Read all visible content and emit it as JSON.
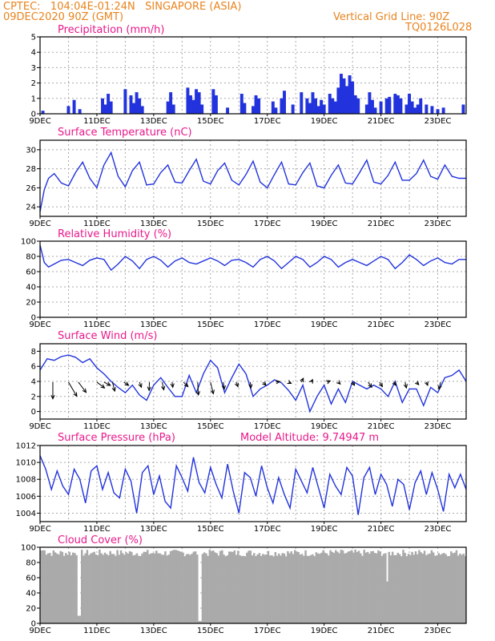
{
  "header": {
    "left1": "CPTEC:   104:04E-01:24N   SINGAPORE (ASIA)",
    "left2": "09DEC2020 90Z (GMT)",
    "right1": "Vertical Grid Line: 90Z",
    "right2": "TQ0126L028"
  },
  "x_ticks": [
    "9DEC",
    "11DEC",
    "13DEC",
    "15DEC",
    "17DEC",
    "19DEC",
    "21DEC",
    "23DEC"
  ],
  "colors": {
    "line": "#2233dd",
    "bar_precip": "#2233dd",
    "bar_cloud": "#aaaaaa",
    "title": "#e8198b",
    "header": "#e8841e"
  },
  "chart_data": [
    {
      "type": "bar",
      "title": "Precipitation (mm/h)",
      "ylim": [
        0,
        5
      ],
      "yticks": [
        0,
        1,
        2,
        3,
        4,
        5
      ],
      "xlim": [
        0,
        15
      ],
      "x": [
        0.1,
        1.0,
        1.2,
        1.4,
        2.2,
        2.3,
        2.4,
        2.5,
        3.0,
        3.2,
        3.3,
        3.4,
        3.5,
        3.6,
        4.5,
        4.6,
        4.7,
        5.2,
        5.3,
        5.4,
        5.5,
        5.6,
        5.7,
        6.1,
        6.2,
        6.6,
        7.1,
        7.2,
        7.5,
        7.6,
        7.7,
        8.2,
        8.3,
        8.5,
        8.6,
        8.9,
        9.2,
        9.4,
        9.5,
        9.6,
        9.7,
        9.8,
        9.9,
        10.0,
        10.5,
        10.6,
        10.7,
        10.8,
        11.5,
        11.6,
        11.7,
        11.8,
        12.0,
        12.3,
        12.5,
        12.6,
        12.7,
        12.9,
        13.0,
        13.2,
        13.3,
        13.4,
        13.8,
        14.0,
        14.2,
        14.9
      ],
      "values": [
        0.2,
        0.5,
        0.9,
        0.3,
        1.0,
        0.6,
        1.3,
        0.8,
        1.6,
        1.2,
        0.7,
        1.4,
        1.0,
        0.5,
        0.8,
        1.4,
        0.6,
        1.7,
        1.2,
        0.9,
        1.6,
        1.4,
        0.6,
        1.6,
        1.2,
        0.4,
        1.3,
        0.7,
        0.5,
        1.2,
        1.0,
        0.8,
        0.4,
        1.0,
        1.5,
        0.6,
        1.4,
        1.0,
        0.7,
        1.4,
        1.0,
        0.5,
        0.9,
        0.6,
        1.7,
        0.3,
        0.5,
        1.0,
        0.6,
        1.4,
        0.9,
        0.4,
        0.8,
        1.1,
        0.9,
        0.8,
        1.0,
        0.6,
        0.9,
        0.4,
        0.6,
        1.0,
        0.5,
        0.3,
        0.4,
        0.6
      ],
      "extra_bars": [
        [
          10.2,
          1.3
        ],
        [
          10.3,
          1.0
        ],
        [
          10.4,
          0.8
        ],
        [
          10.6,
          2.6
        ],
        [
          10.7,
          2.3
        ],
        [
          10.8,
          1.8
        ],
        [
          10.9,
          2.5
        ],
        [
          11.0,
          2.1
        ],
        [
          11.1,
          1.2
        ],
        [
          11.2,
          1.0
        ],
        [
          12.2,
          1.0
        ],
        [
          12.3,
          0.9
        ],
        [
          12.5,
          1.3
        ],
        [
          12.6,
          1.2
        ],
        [
          13.0,
          1.3
        ],
        [
          13.1,
          0.8
        ],
        [
          13.6,
          0.6
        ]
      ]
    },
    {
      "type": "line",
      "title": "Surface Temperature (nC)",
      "ylim": [
        23,
        31
      ],
      "yticks": [
        24,
        26,
        28,
        30
      ],
      "xlim": [
        0,
        15
      ],
      "x": [
        0,
        0.15,
        0.3,
        0.5,
        0.75,
        1.0,
        1.25,
        1.5,
        1.75,
        2.0,
        2.25,
        2.5,
        2.75,
        3.0,
        3.25,
        3.5,
        3.75,
        4.0,
        4.25,
        4.5,
        4.75,
        5.0,
        5.25,
        5.5,
        5.75,
        6.0,
        6.25,
        6.5,
        6.75,
        7.0,
        7.25,
        7.5,
        7.75,
        8.0,
        8.25,
        8.5,
        8.75,
        9.0,
        9.25,
        9.5,
        9.75,
        10.0,
        10.25,
        10.5,
        10.75,
        11.0,
        11.25,
        11.5,
        11.75,
        12.0,
        12.25,
        12.5,
        12.75,
        13.0,
        13.25,
        13.5,
        13.75,
        14.0,
        14.25,
        14.5,
        14.75,
        15.0
      ],
      "values": [
        23.5,
        25.8,
        27.0,
        27.5,
        26.5,
        26.2,
        27.6,
        28.7,
        27.0,
        26.0,
        28.4,
        29.7,
        27.2,
        26.1,
        27.8,
        28.7,
        26.3,
        26.4,
        27.6,
        28.4,
        26.6,
        26.5,
        27.8,
        29.0,
        26.7,
        26.4,
        27.8,
        28.6,
        26.8,
        26.3,
        27.4,
        28.8,
        26.6,
        26.0,
        27.4,
        28.7,
        26.4,
        26.3,
        27.6,
        28.6,
        26.2,
        26.0,
        27.3,
        28.4,
        26.5,
        26.4,
        27.6,
        28.9,
        26.6,
        26.4,
        27.3,
        28.7,
        26.8,
        26.8,
        27.5,
        28.9,
        27.2,
        26.9,
        28.4,
        27.2,
        27.0,
        27.0
      ]
    },
    {
      "type": "line",
      "title": "Relative Humidity (%)",
      "ylim": [
        0,
        100
      ],
      "yticks": [
        0,
        20,
        40,
        60,
        80,
        100
      ],
      "xlim": [
        0,
        15
      ],
      "x": [
        0,
        0.15,
        0.3,
        0.5,
        0.75,
        1.0,
        1.25,
        1.5,
        1.75,
        2.0,
        2.25,
        2.5,
        2.75,
        3.0,
        3.25,
        3.5,
        3.75,
        4.0,
        4.25,
        4.5,
        4.75,
        5.0,
        5.25,
        5.5,
        5.75,
        6.0,
        6.25,
        6.5,
        6.75,
        7.0,
        7.25,
        7.5,
        7.75,
        8.0,
        8.25,
        8.5,
        8.75,
        9.0,
        9.25,
        9.5,
        9.75,
        10.0,
        10.25,
        10.5,
        10.75,
        11.0,
        11.25,
        11.5,
        11.75,
        12.0,
        12.25,
        12.5,
        12.75,
        13.0,
        13.25,
        13.5,
        13.75,
        14.0,
        14.25,
        14.5,
        14.75,
        15.0
      ],
      "values": [
        95,
        72,
        66,
        70,
        75,
        76,
        72,
        68,
        75,
        78,
        76,
        62,
        70,
        80,
        74,
        64,
        76,
        80,
        75,
        66,
        74,
        78,
        72,
        70,
        74,
        78,
        74,
        68,
        75,
        76,
        72,
        66,
        76,
        80,
        74,
        64,
        72,
        80,
        76,
        66,
        72,
        80,
        76,
        66,
        72,
        76,
        72,
        68,
        74,
        80,
        76,
        64,
        72,
        82,
        76,
        68,
        74,
        78,
        72,
        70,
        76,
        76
      ]
    },
    {
      "type": "line",
      "title": "Surface Wind (m/s)",
      "ylim": [
        -1,
        9
      ],
      "yticks": [
        0,
        2,
        4,
        6,
        8
      ],
      "xlim": [
        0,
        15
      ],
      "x": [
        0,
        0.25,
        0.5,
        0.75,
        1.0,
        1.25,
        1.5,
        1.75,
        2.0,
        2.25,
        2.5,
        2.75,
        3.0,
        3.25,
        3.5,
        3.75,
        4.0,
        4.25,
        4.5,
        4.75,
        5.0,
        5.25,
        5.5,
        5.75,
        6.0,
        6.25,
        6.5,
        6.75,
        7.0,
        7.25,
        7.5,
        7.75,
        8.0,
        8.25,
        8.5,
        8.75,
        9.0,
        9.25,
        9.5,
        9.75,
        10.0,
        10.25,
        10.5,
        10.75,
        11.0,
        11.25,
        11.5,
        11.75,
        12.0,
        12.25,
        12.5,
        12.75,
        13.0,
        13.25,
        13.5,
        13.75,
        14.0,
        14.25,
        14.5,
        14.75,
        15.0
      ],
      "values": [
        5.5,
        7.0,
        6.8,
        7.3,
        7.5,
        7.2,
        6.5,
        7.0,
        5.8,
        5.0,
        4.0,
        3.2,
        2.5,
        3.5,
        2.2,
        1.5,
        3.5,
        4.5,
        3.2,
        2.0,
        2.0,
        4.8,
        2.5,
        5.0,
        6.8,
        5.8,
        2.5,
        4.5,
        6.3,
        5.0,
        2.0,
        3.0,
        3.5,
        4.2,
        3.8,
        2.8,
        1.5,
        3.5,
        0.0,
        2.0,
        3.5,
        1.0,
        3.0,
        1.2,
        4.0,
        3.5,
        3.0,
        3.5,
        3.0,
        2.0,
        4.0,
        1.2,
        3.0,
        3.0,
        0.8,
        3.2,
        2.5,
        4.5,
        4.8,
        5.5,
        4.0
      ],
      "arrows": [
        [
          0.45,
          3.9,
          0,
          2.6
        ],
        [
          1.0,
          3.9,
          1.3,
          2.2
        ],
        [
          1.35,
          3.9,
          1.2,
          1.6
        ],
        [
          2.0,
          3.9,
          1.2,
          0.9
        ],
        [
          2.25,
          3.9,
          1.0,
          0.5
        ],
        [
          2.55,
          3.9,
          0.35,
          1.4
        ],
        [
          2.95,
          3.9,
          0.75,
          0.5
        ],
        [
          3.5,
          3.9,
          0.3,
          0.8
        ],
        [
          3.85,
          3.9,
          -0.05,
          1.3
        ],
        [
          4.3,
          3.9,
          0.25,
          1.2
        ],
        [
          4.65,
          3.9,
          0.1,
          0.8
        ],
        [
          5.05,
          3.9,
          0.7,
          0.7
        ],
        [
          5.55,
          3.9,
          0.1,
          2.0
        ],
        [
          6.0,
          3.9,
          0.45,
          1.8
        ],
        [
          6.45,
          3.9,
          0.15,
          1.1
        ],
        [
          6.9,
          3.9,
          0.3,
          0.7
        ],
        [
          7.4,
          3.9,
          0.1,
          0.9
        ],
        [
          7.85,
          3.9,
          0.45,
          0.5
        ],
        [
          8.3,
          3.9,
          0.6,
          -0.1
        ],
        [
          8.75,
          3.9,
          0.4,
          0.2
        ],
        [
          9.2,
          3.9,
          0.3,
          -0.6
        ],
        [
          9.55,
          3.9,
          0.2,
          -0.4
        ],
        [
          10.1,
          3.9,
          0.5,
          -0.2
        ],
        [
          10.5,
          3.9,
          0.3,
          0.3
        ],
        [
          11.0,
          3.9,
          0.3,
          0.5
        ],
        [
          11.55,
          3.9,
          0.55,
          0.8
        ],
        [
          11.95,
          3.9,
          0.45,
          0.7
        ],
        [
          12.45,
          3.9,
          0.35,
          0.5
        ],
        [
          12.85,
          3.9,
          0.2,
          0.9
        ],
        [
          13.25,
          3.9,
          0.35,
          0.4
        ],
        [
          13.6,
          3.9,
          0.2,
          0.5
        ],
        [
          14.1,
          3.9,
          -0.25,
          1.1
        ]
      ]
    },
    {
      "type": "line",
      "title": "Surface Pressure (hPa)",
      "subtitle": "Model Altitude: 9.74947  m",
      "ylim": [
        1003,
        1012
      ],
      "yticks": [
        1004,
        1006,
        1008,
        1010,
        1012
      ],
      "xlim": [
        0,
        15
      ],
      "x": [
        0,
        0.2,
        0.4,
        0.6,
        0.8,
        1.0,
        1.2,
        1.4,
        1.6,
        1.8,
        2.0,
        2.2,
        2.4,
        2.6,
        2.8,
        3.0,
        3.2,
        3.4,
        3.6,
        3.8,
        4.0,
        4.2,
        4.4,
        4.6,
        4.8,
        5.0,
        5.2,
        5.4,
        5.6,
        5.8,
        6.0,
        6.2,
        6.4,
        6.6,
        6.8,
        7.0,
        7.2,
        7.4,
        7.6,
        7.8,
        8.0,
        8.2,
        8.4,
        8.6,
        8.8,
        9.0,
        9.2,
        9.4,
        9.6,
        9.8,
        10.0,
        10.2,
        10.4,
        10.6,
        10.8,
        11.0,
        11.2,
        11.4,
        11.6,
        11.8,
        12.0,
        12.2,
        12.4,
        12.6,
        12.8,
        13.0,
        13.2,
        13.4,
        13.6,
        13.8,
        14.0,
        14.2,
        14.4,
        14.6,
        14.8,
        15.0
      ],
      "values": [
        1010.8,
        1009.2,
        1006.8,
        1009.0,
        1007.2,
        1006.2,
        1009.2,
        1008.0,
        1005.2,
        1009.0,
        1009.6,
        1006.8,
        1008.8,
        1006.4,
        1005.8,
        1009.2,
        1007.8,
        1004.0,
        1008.8,
        1009.6,
        1006.2,
        1008.4,
        1005.4,
        1004.6,
        1009.6,
        1008.2,
        1006.6,
        1010.6,
        1007.6,
        1006.4,
        1009.4,
        1007.4,
        1005.8,
        1009.8,
        1006.6,
        1004.0,
        1008.8,
        1008.2,
        1006.0,
        1009.6,
        1007.0,
        1005.2,
        1008.2,
        1006.2,
        1004.6,
        1009.2,
        1007.8,
        1006.4,
        1009.4,
        1007.0,
        1004.6,
        1008.6,
        1007.2,
        1006.2,
        1009.4,
        1008.4,
        1003.8,
        1008.2,
        1009.4,
        1006.2,
        1008.6,
        1007.4,
        1004.8,
        1008.0,
        1007.4,
        1004.4,
        1007.6,
        1009.0,
        1006.2,
        1008.8,
        1006.8,
        1004.2,
        1008.6,
        1007.0,
        1008.6,
        1006.8
      ]
    },
    {
      "type": "bar",
      "title": "Cloud Cover (%)",
      "ylim": [
        0,
        100
      ],
      "yticks": [
        0,
        20,
        40,
        60,
        80,
        100
      ],
      "xlim": [
        0,
        15
      ],
      "dips": [
        [
          1.35,
          10
        ],
        [
          5.6,
          3
        ],
        [
          12.2,
          55
        ],
        [
          6.0,
          95
        ]
      ],
      "base": 90
    }
  ]
}
